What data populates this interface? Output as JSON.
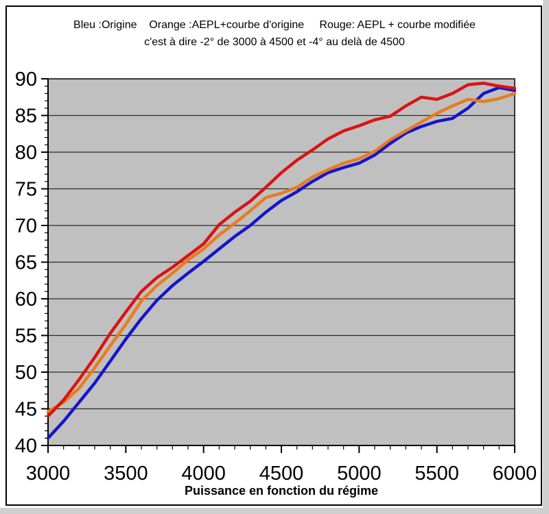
{
  "header": {
    "legend_line": "Bleu :Origine    Orange :AEPL+courbe d'origine     Rouge: AEPL + courbe modifiée",
    "subtitle_line": "c'est à dire -2° de 3000 à 4500 et -4° au delà de 4500"
  },
  "chart_data": {
    "type": "line",
    "title": "",
    "xlabel": "Puissance en fonction du régime",
    "ylabel": "",
    "xlim": [
      3000,
      6000
    ],
    "ylim": [
      40,
      90
    ],
    "x_ticks": [
      3000,
      3500,
      4000,
      4500,
      5000,
      5500,
      6000
    ],
    "y_ticks": [
      40,
      45,
      50,
      55,
      60,
      65,
      70,
      75,
      80,
      85,
      90
    ],
    "x_minor_step": 100,
    "y_minor_step": 1,
    "grid": "horizontal-only",
    "plot_bg": "#c0c0c0",
    "grid_color": "#2a2a2a",
    "axis_color": "#000000",
    "x": [
      3000,
      3100,
      3200,
      3300,
      3400,
      3500,
      3600,
      3700,
      3800,
      3900,
      4000,
      4100,
      4200,
      4300,
      4400,
      4500,
      4600,
      4700,
      4800,
      4900,
      5000,
      5100,
      5200,
      5300,
      5400,
      5500,
      5600,
      5700,
      5800,
      5900,
      6000
    ],
    "series": [
      {
        "name": "Origine",
        "color": "#1515cc",
        "values": [
          41.0,
          43.3,
          45.9,
          48.5,
          51.5,
          54.5,
          57.3,
          59.8,
          61.8,
          63.5,
          65.1,
          66.8,
          68.5,
          70.0,
          71.8,
          73.4,
          74.6,
          76.0,
          77.2,
          77.9,
          78.5,
          79.6,
          81.2,
          82.6,
          83.5,
          84.2,
          84.6,
          86.0,
          88.0,
          88.8,
          88.4
        ]
      },
      {
        "name": "AEPL+courbe d'origine",
        "color": "#e87c1e",
        "values": [
          44.6,
          45.9,
          47.8,
          50.6,
          53.6,
          56.5,
          59.7,
          61.8,
          63.5,
          65.3,
          66.8,
          68.7,
          70.3,
          72.0,
          73.8,
          74.4,
          75.2,
          76.6,
          77.6,
          78.5,
          79.1,
          80.1,
          81.7,
          82.9,
          84.1,
          85.3,
          86.3,
          87.2,
          86.9,
          87.3,
          88.0
        ]
      },
      {
        "name": "AEPL + courbe modifiée",
        "color": "#d91414",
        "values": [
          44.0,
          46.2,
          49.0,
          52.0,
          55.3,
          58.2,
          61.0,
          62.9,
          64.3,
          65.9,
          67.5,
          70.1,
          71.8,
          73.3,
          75.2,
          77.2,
          78.9,
          80.3,
          81.8,
          82.9,
          83.6,
          84.4,
          84.9,
          86.3,
          87.5,
          87.2,
          88.0,
          89.2,
          89.4,
          89.0,
          88.7
        ]
      }
    ]
  }
}
